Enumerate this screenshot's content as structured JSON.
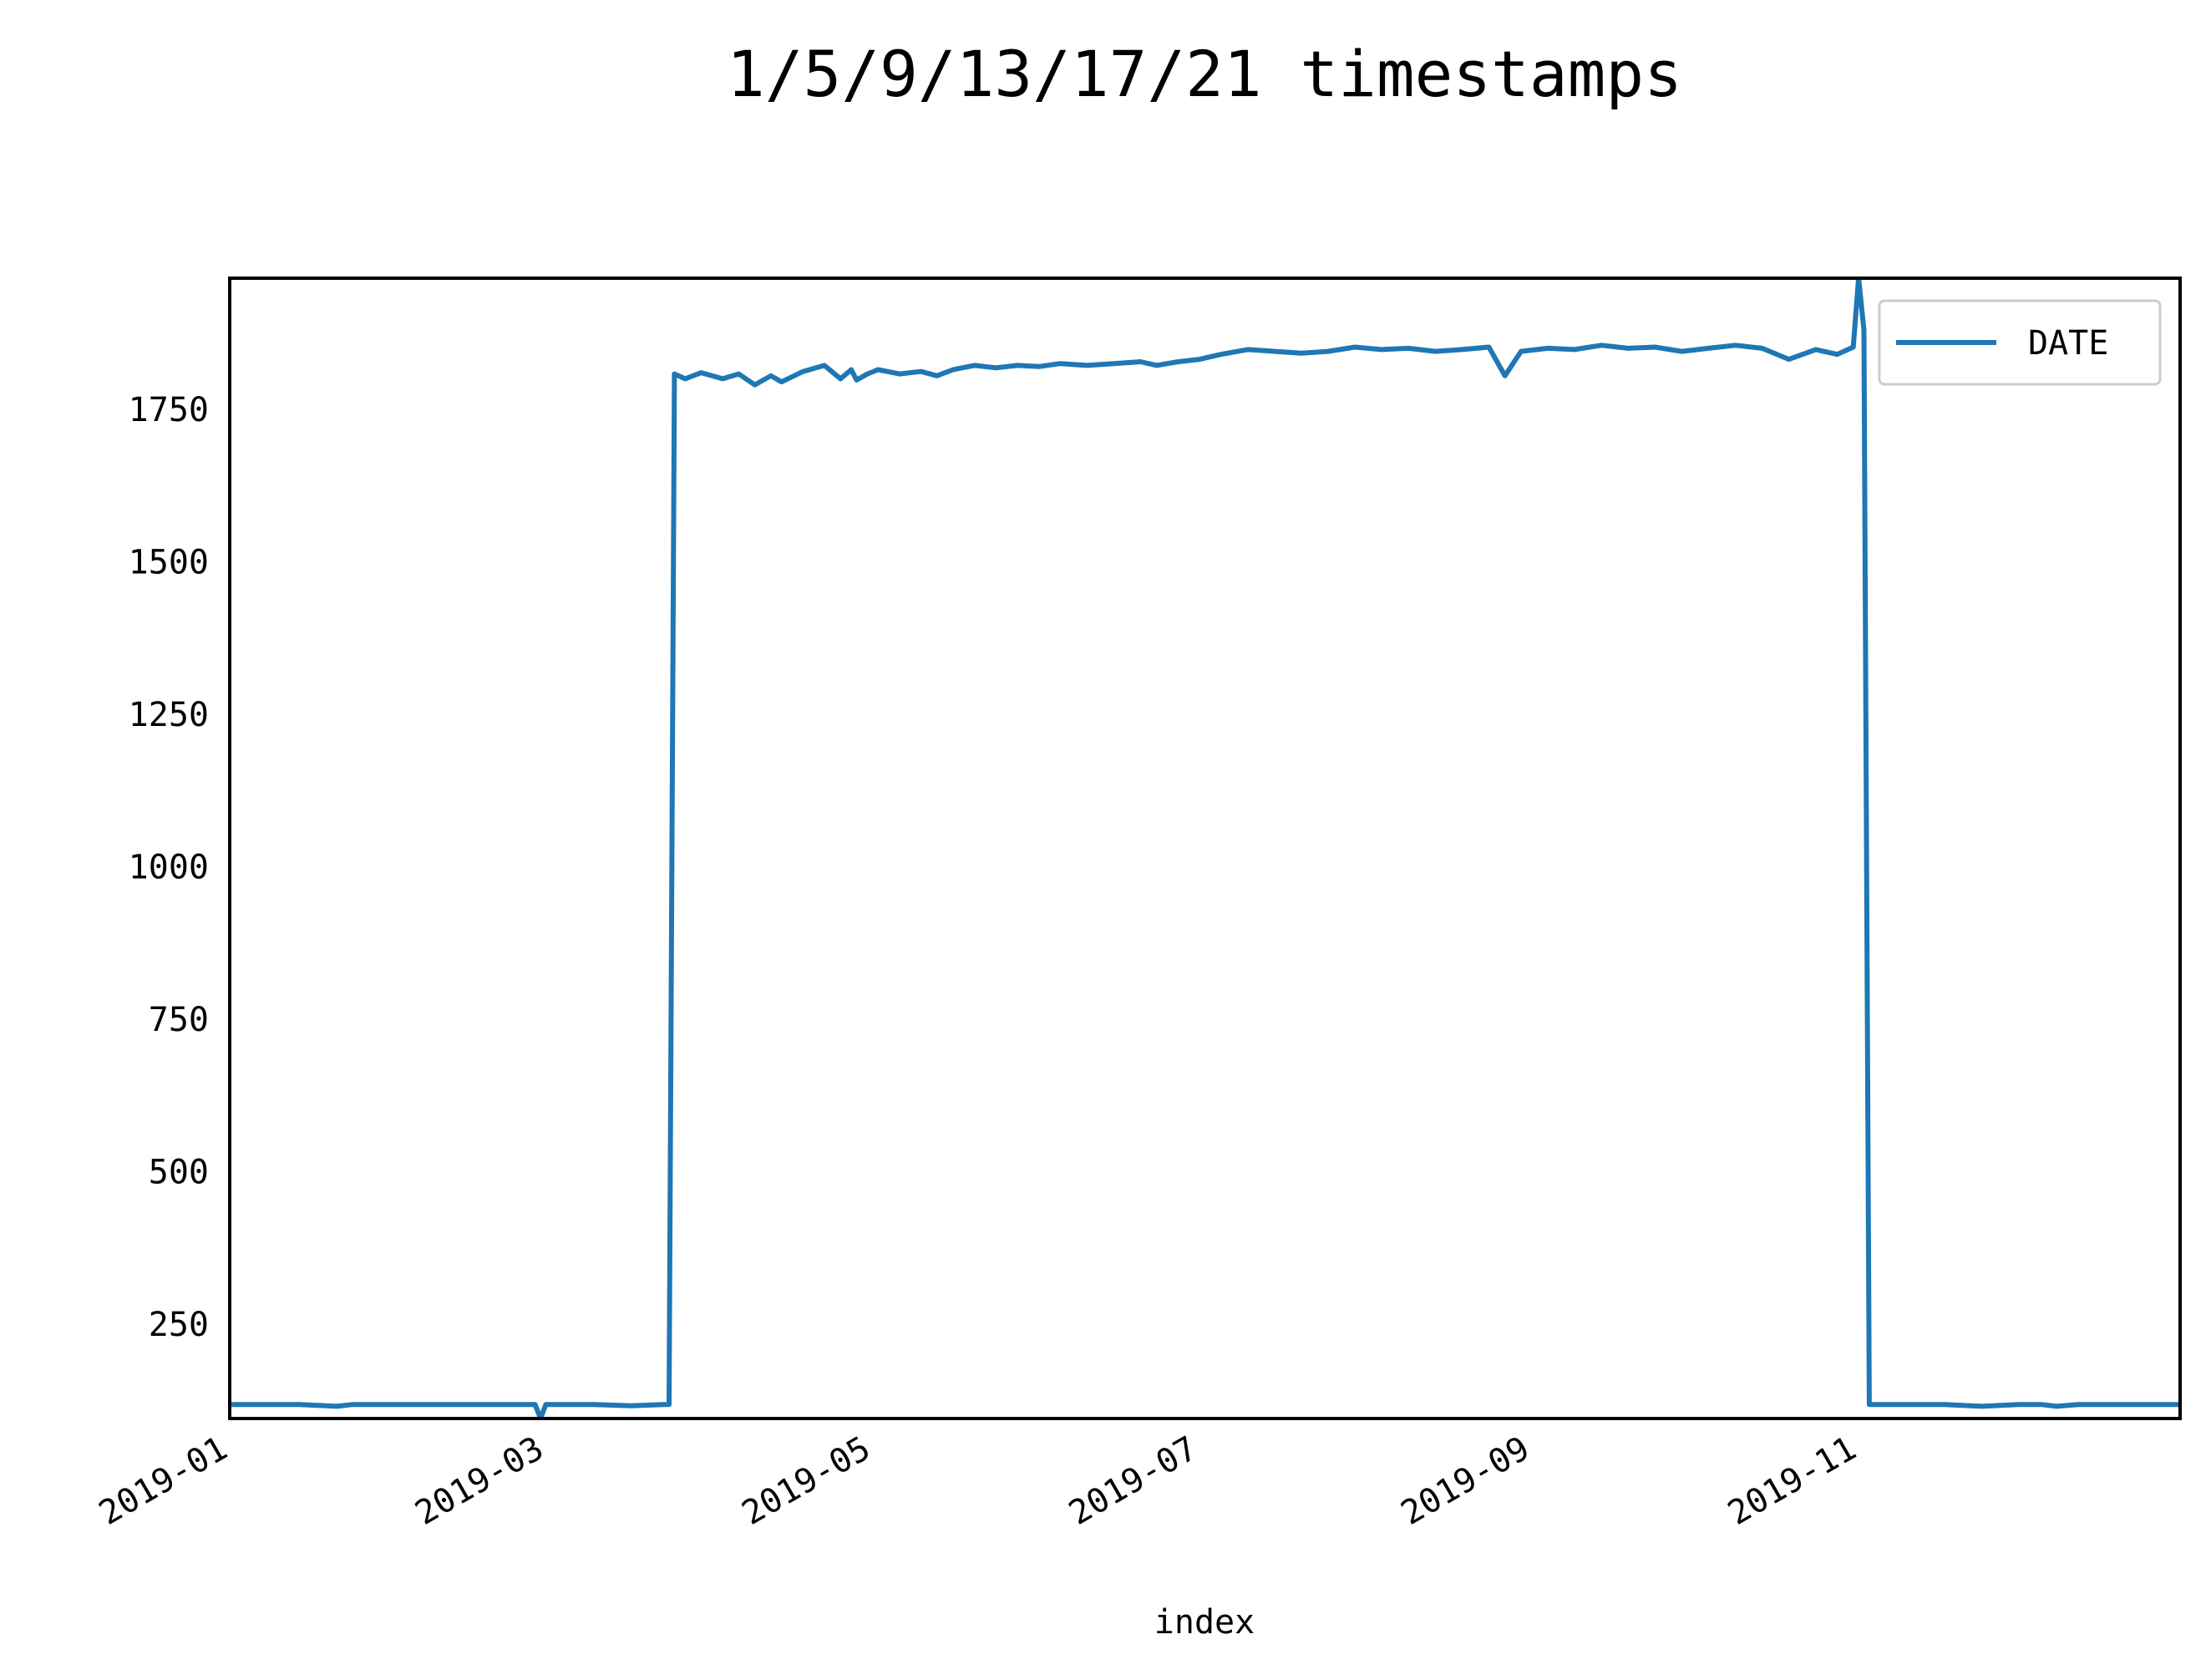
{
  "chart_data": {
    "type": "line",
    "title": "1/5/9/13/17/21 timestamps",
    "xlabel": "index",
    "ylabel": "",
    "x_axis_type": "date",
    "xlim": [
      "2019-01-01",
      "2019-12-31"
    ],
    "ylim": [
      95,
      1965
    ],
    "x_ticks": [
      "2019-01",
      "2019-03",
      "2019-05",
      "2019-07",
      "2019-09",
      "2019-11"
    ],
    "y_ticks": [
      250,
      500,
      750,
      1000,
      1250,
      1500,
      1750
    ],
    "grid": false,
    "legend": {
      "position": "top-right",
      "entries": [
        "DATE"
      ]
    },
    "series": [
      {
        "name": "DATE",
        "color": "#1f77b4",
        "x": [
          "2019-01-01",
          "2019-01-07",
          "2019-01-14",
          "2019-01-21",
          "2019-01-24",
          "2019-01-31",
          "2019-02-07",
          "2019-02-14",
          "2019-02-21",
          "2019-02-27",
          "2019-02-28",
          "2019-03-01",
          "2019-03-03",
          "2019-03-10",
          "2019-03-17",
          "2019-03-23",
          "2019-03-24",
          "2019-03-25",
          "2019-03-27",
          "2019-03-30",
          "2019-04-03",
          "2019-04-06",
          "2019-04-09",
          "2019-04-12",
          "2019-04-14",
          "2019-04-18",
          "2019-04-22",
          "2019-04-25",
          "2019-04-27",
          "2019-04-28",
          "2019-04-30",
          "2019-05-02",
          "2019-05-06",
          "2019-05-10",
          "2019-05-13",
          "2019-05-16",
          "2019-05-20",
          "2019-05-24",
          "2019-05-28",
          "2019-06-01",
          "2019-06-05",
          "2019-06-10",
          "2019-06-15",
          "2019-06-20",
          "2019-06-23",
          "2019-06-27",
          "2019-07-01",
          "2019-07-05",
          "2019-07-10",
          "2019-07-15",
          "2019-07-20",
          "2019-07-25",
          "2019-07-30",
          "2019-08-04",
          "2019-08-09",
          "2019-08-14",
          "2019-08-19",
          "2019-08-24",
          "2019-08-27",
          "2019-08-30",
          "2019-09-04",
          "2019-09-09",
          "2019-09-14",
          "2019-09-19",
          "2019-09-24",
          "2019-09-29",
          "2019-10-04",
          "2019-10-09",
          "2019-10-14",
          "2019-10-19",
          "2019-10-24",
          "2019-10-28",
          "2019-10-31",
          "2019-11-01",
          "2019-11-02",
          "2019-11-03",
          "2019-11-10",
          "2019-11-17",
          "2019-11-24",
          "2019-12-01",
          "2019-12-05",
          "2019-12-08",
          "2019-12-12",
          "2019-12-19",
          "2019-12-26",
          "2019-12-31"
        ],
        "values": [
          118,
          118,
          118,
          115,
          118,
          118,
          118,
          118,
          118,
          118,
          95,
          118,
          118,
          118,
          116,
          118,
          118,
          1808,
          1800,
          1810,
          1800,
          1808,
          1790,
          1805,
          1795,
          1812,
          1822,
          1800,
          1815,
          1798,
          1808,
          1815,
          1808,
          1812,
          1805,
          1815,
          1822,
          1818,
          1822,
          1820,
          1825,
          1822,
          1825,
          1828,
          1822,
          1828,
          1832,
          1840,
          1848,
          1845,
          1842,
          1845,
          1852,
          1848,
          1850,
          1845,
          1848,
          1852,
          1805,
          1845,
          1850,
          1848,
          1855,
          1850,
          1852,
          1845,
          1850,
          1855,
          1850,
          1832,
          1848,
          1840,
          1852,
          1965,
          1880,
          118,
          118,
          118,
          115,
          118,
          118,
          115,
          118,
          118,
          118,
          118
        ]
      }
    ]
  }
}
